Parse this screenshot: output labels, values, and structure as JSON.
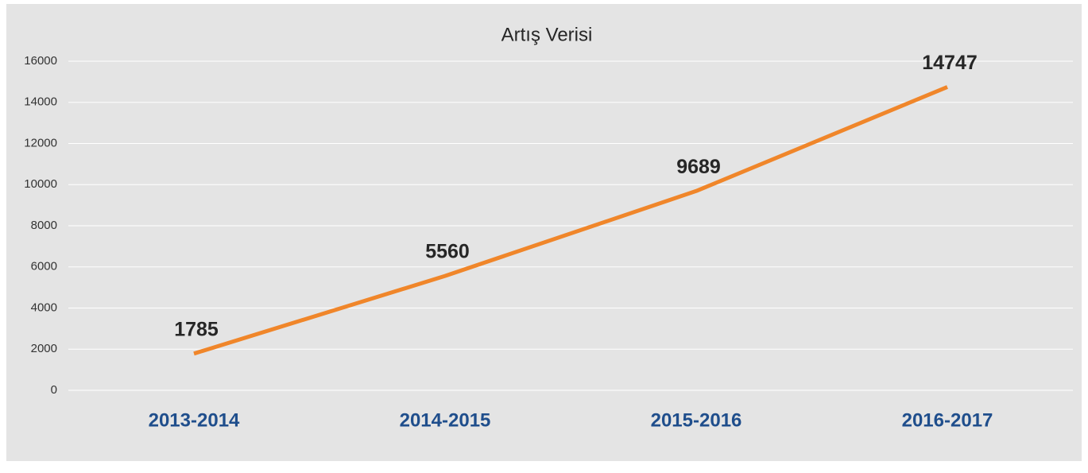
{
  "chart_data": {
    "type": "line",
    "title": "Artış Verisi",
    "categories": [
      "2013-2014",
      "2014-2015",
      "2015-2016",
      "2016-2017"
    ],
    "series": [
      {
        "name": "Artış",
        "color": "#f0862a",
        "values": [
          1785,
          5560,
          9689,
          14747
        ]
      }
    ],
    "ylim": [
      0,
      16000
    ],
    "yticks": [
      0,
      2000,
      4000,
      6000,
      8000,
      10000,
      12000,
      14000,
      16000
    ],
    "grid": true
  }
}
